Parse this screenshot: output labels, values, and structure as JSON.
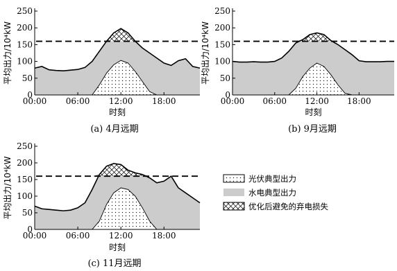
{
  "legend": {
    "pv": "光伏典型出力",
    "hydro": "水电典型出力",
    "curtail": "优化后避免的弃电损失"
  },
  "colors": {
    "hydro_fill": "#cccccc",
    "line": "#000000"
  },
  "chart_data": [
    {
      "type": "area",
      "caption": "(a) 4月远期",
      "xlabel": "时刻",
      "ylabel": "平均出力/10⁴kW",
      "ylim": [
        0,
        250
      ],
      "yticks": [
        0,
        50,
        100,
        150,
        200,
        250
      ],
      "xticks": [
        "00:00",
        "06:00",
        "12:00",
        "18:00"
      ],
      "threshold": 160,
      "grid": false,
      "x_hours": [
        0,
        1,
        2,
        3,
        4,
        5,
        6,
        7,
        8,
        9,
        10,
        11,
        12,
        13,
        14,
        15,
        16,
        17,
        18,
        19,
        20,
        21,
        22,
        23
      ],
      "series": [
        {
          "key": "total",
          "values": [
            80,
            85,
            75,
            73,
            72,
            74,
            76,
            82,
            100,
            130,
            160,
            185,
            198,
            185,
            160,
            140,
            125,
            110,
            95,
            88,
            102,
            108,
            85,
            80
          ]
        },
        {
          "key": "pv",
          "values": [
            0,
            0,
            0,
            0,
            0,
            0,
            0,
            0,
            0,
            30,
            65,
            90,
            103,
            95,
            70,
            40,
            10,
            0,
            0,
            0,
            0,
            0,
            0,
            0
          ]
        }
      ]
    },
    {
      "type": "area",
      "caption": "(b) 9月远期",
      "xlabel": "时刻",
      "ylabel": "平均出力/10⁴kW",
      "ylim": [
        0,
        250
      ],
      "yticks": [
        0,
        50,
        100,
        150,
        200,
        250
      ],
      "xticks": [
        "00:00",
        "06:00",
        "12:00",
        "18:00"
      ],
      "threshold": 160,
      "grid": false,
      "x_hours": [
        0,
        1,
        2,
        3,
        4,
        5,
        6,
        7,
        8,
        9,
        10,
        11,
        12,
        13,
        14,
        15,
        16,
        17,
        18,
        19,
        20,
        21,
        22,
        23
      ],
      "series": [
        {
          "key": "total",
          "values": [
            100,
            98,
            98,
            99,
            98,
            98,
            100,
            110,
            130,
            155,
            165,
            180,
            185,
            180,
            162,
            150,
            135,
            120,
            102,
            99,
            99,
            99,
            100,
            100
          ]
        },
        {
          "key": "pv",
          "values": [
            0,
            0,
            0,
            0,
            0,
            0,
            0,
            0,
            0,
            20,
            55,
            80,
            95,
            85,
            60,
            30,
            5,
            0,
            0,
            0,
            0,
            0,
            0,
            0
          ]
        }
      ]
    },
    {
      "type": "area",
      "caption": "(c) 11月远期",
      "xlabel": "时刻",
      "ylabel": "平均出力/10⁴kW",
      "ylim": [
        0,
        250
      ],
      "yticks": [
        0,
        50,
        100,
        150,
        200,
        250
      ],
      "xticks": [
        "00:00",
        "06:00",
        "12:00",
        "18:00"
      ],
      "threshold": 160,
      "grid": false,
      "x_hours": [
        0,
        1,
        2,
        3,
        4,
        5,
        6,
        7,
        8,
        9,
        10,
        11,
        12,
        13,
        14,
        15,
        16,
        17,
        18,
        19,
        20,
        21,
        22,
        23
      ],
      "series": [
        {
          "key": "total",
          "values": [
            70,
            62,
            60,
            58,
            56,
            58,
            65,
            80,
            120,
            165,
            190,
            198,
            195,
            178,
            170,
            165,
            155,
            140,
            145,
            160,
            125,
            110,
            95,
            80
          ]
        },
        {
          "key": "pv",
          "values": [
            0,
            0,
            0,
            0,
            0,
            0,
            0,
            0,
            0,
            25,
            75,
            110,
            125,
            120,
            100,
            65,
            25,
            0,
            0,
            0,
            0,
            0,
            0,
            0
          ]
        }
      ]
    }
  ]
}
